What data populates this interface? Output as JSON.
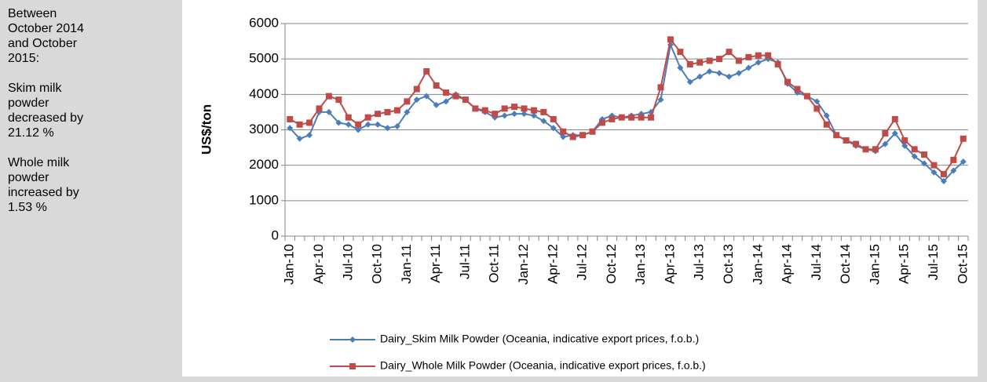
{
  "side_note": {
    "paragraphs": [
      "Between October 2014 and October 2015:",
      "Skim milk powder decreased by 21.12 %",
      "Whole milk powder increased by 1.53 %"
    ]
  },
  "chart_data": {
    "type": "line",
    "y_label": "US$/ton",
    "categories": [
      "Jan-10",
      null,
      null,
      "Apr-10",
      null,
      null,
      "Jul-10",
      null,
      null,
      "Oct-10",
      null,
      null,
      "Jan-11",
      null,
      null,
      "Apr-11",
      null,
      null,
      "Jul-11",
      null,
      null,
      "Oct-11",
      null,
      null,
      "Jan-12",
      null,
      null,
      "Apr-12",
      null,
      null,
      "Jul-12",
      null,
      null,
      "Oct-12",
      null,
      null,
      "Jan-13",
      null,
      null,
      "Apr-13",
      null,
      null,
      "Jul-13",
      null,
      null,
      "Oct-13",
      null,
      null,
      "Jan-14",
      null,
      null,
      "Apr-14",
      null,
      null,
      "Jul-14",
      null,
      null,
      "Oct-14",
      null,
      null,
      "Jan-15",
      null,
      null,
      "Apr-15",
      null,
      null,
      "Jul-15",
      null,
      null,
      "Oct-15"
    ],
    "series": [
      {
        "name": "Dairy_Skim Milk Powder (Oceania, indicative export prices, f.o.b.)",
        "color": "#4a7ebb",
        "marker": "diamond",
        "values": [
          3050,
          2750,
          2850,
          3500,
          3500,
          3200,
          3150,
          3000,
          3150,
          3150,
          3050,
          3100,
          3500,
          3850,
          3950,
          3700,
          3800,
          4000,
          3850,
          3600,
          3500,
          3350,
          3400,
          3450,
          3450,
          3400,
          3250,
          3050,
          2800,
          2850,
          2850,
          2950,
          3300,
          3400,
          3350,
          3400,
          3450,
          3500,
          3850,
          5400,
          4750,
          4350,
          4500,
          4650,
          4600,
          4500,
          4600,
          4750,
          4900,
          5000,
          4900,
          4300,
          4050,
          3950,
          3800,
          3400,
          2850,
          2700,
          2550,
          2450,
          2400,
          2600,
          2900,
          2550,
          2250,
          2050,
          1800,
          1550,
          1850,
          2100
        ]
      },
      {
        "name": "Dairy_Whole Milk Powder (Oceania, indicative export prices, f.o.b.)",
        "color": "#be4b48",
        "marker": "square",
        "values": [
          3300,
          3150,
          3200,
          3600,
          3950,
          3850,
          3350,
          3150,
          3350,
          3450,
          3500,
          3550,
          3800,
          4150,
          4650,
          4250,
          4050,
          3950,
          3850,
          3600,
          3550,
          3450,
          3600,
          3650,
          3600,
          3550,
          3500,
          3300,
          2950,
          2800,
          2850,
          2950,
          3200,
          3300,
          3350,
          3350,
          3350,
          3350,
          4200,
          5550,
          5200,
          4850,
          4900,
          4950,
          5000,
          5200,
          4950,
          5050,
          5100,
          5100,
          4850,
          4350,
          4150,
          3950,
          3600,
          3150,
          2850,
          2700,
          2600,
          2450,
          2450,
          2900,
          3300,
          2700,
          2450,
          2300,
          2000,
          1750,
          2150,
          2750
        ]
      }
    ],
    "ylim": [
      0,
      6000
    ],
    "yticks": [
      0,
      1000,
      2000,
      3000,
      4000,
      5000,
      6000
    ],
    "grid": true
  }
}
